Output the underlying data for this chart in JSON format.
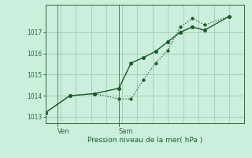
{
  "xlabel": "Pression niveau de la mer( hPa )",
  "bg_color": "#cceedd",
  "grid_color": "#aaccbb",
  "line_color": "#1a5c2a",
  "axis_color": "#2a6a3a",
  "ylim": [
    1012.7,
    1018.3
  ],
  "yticks": [
    1013,
    1014,
    1015,
    1016,
    1017
  ],
  "ytick_labels": [
    "1013",
    "1014",
    "1015",
    "1016",
    "1017"
  ],
  "xlim": [
    0,
    13
  ],
  "xtick_labels": [
    "Ven",
    "Sam"
  ],
  "xtick_positions": [
    0.8,
    4.8
  ],
  "vline_positions": [
    0.8,
    4.8
  ],
  "series1_x": [
    0,
    1.6,
    3.2,
    4.8,
    5.6,
    6.4,
    7.2,
    8.0,
    8.8,
    9.6,
    10.4,
    12.0
  ],
  "series1_y": [
    1013.2,
    1014.0,
    1014.1,
    1013.85,
    1013.85,
    1014.75,
    1015.55,
    1016.15,
    1017.25,
    1017.65,
    1017.35,
    1017.75
  ],
  "series2_x": [
    0,
    1.6,
    3.2,
    4.8,
    5.6,
    6.4,
    7.2,
    8.0,
    8.8,
    9.6,
    10.4,
    12.0
  ],
  "series2_y": [
    1013.2,
    1014.0,
    1014.1,
    1014.35,
    1015.55,
    1015.8,
    1016.1,
    1016.55,
    1017.0,
    1017.25,
    1017.1,
    1017.75
  ],
  "figsize": [
    3.2,
    2.0
  ],
  "dpi": 100
}
